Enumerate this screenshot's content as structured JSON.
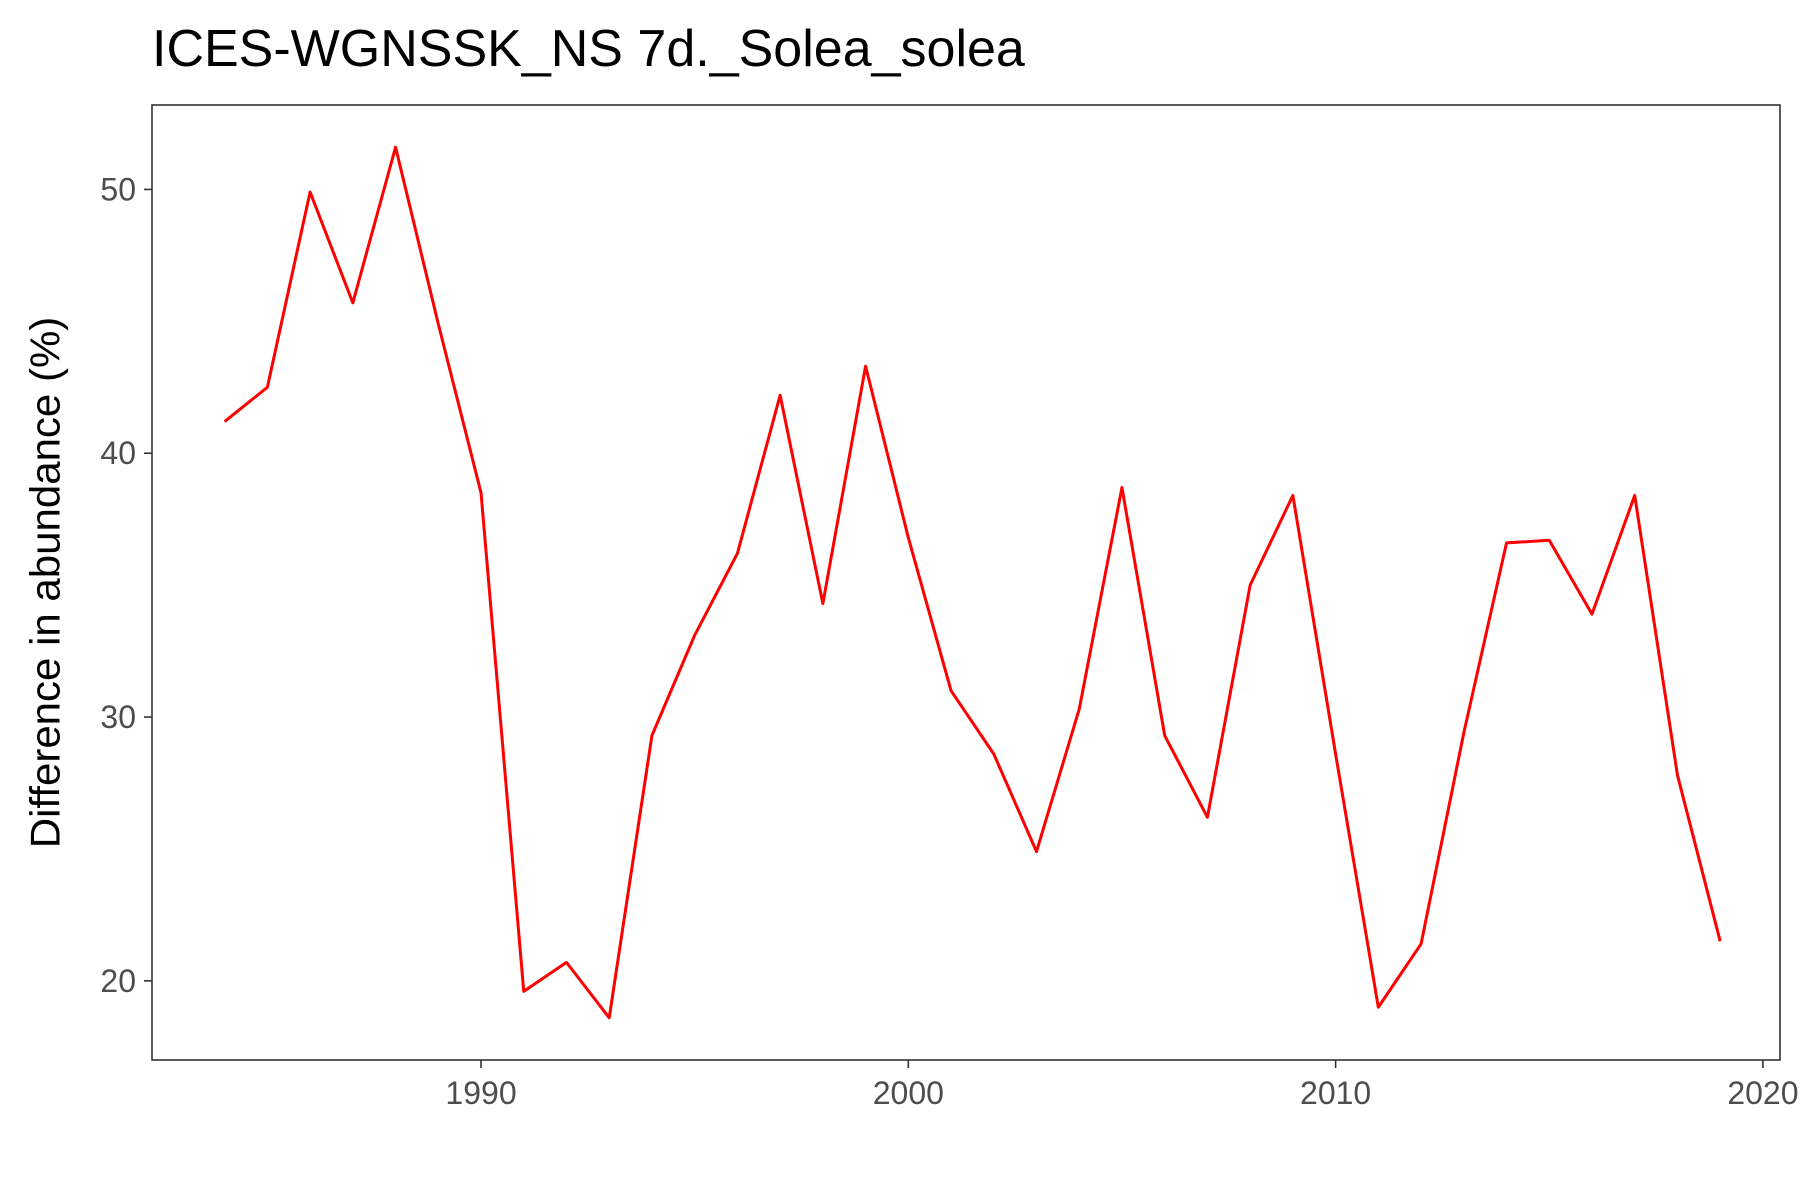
{
  "chart_data": {
    "type": "line",
    "title": "ICES-WGNSSK_NS 7d._Solea_solea",
    "xlabel": "",
    "ylabel": "Difference in abundance (%)",
    "xlim": [
      1982.3,
      2020.4
    ],
    "ylim": [
      17.0,
      53.2
    ],
    "x_ticks": [
      1990,
      2000,
      2010,
      2020
    ],
    "y_ticks": [
      20,
      30,
      40,
      50
    ],
    "grid": false,
    "legend": "none",
    "series": [
      {
        "color": "#ff0000",
        "x": [
          1984,
          1985,
          1986,
          1987,
          1988,
          1989,
          1990,
          1991,
          1992,
          1993,
          1994,
          1995,
          1996,
          1997,
          1998,
          1999,
          2000,
          2001,
          2002,
          2003,
          2004,
          2005,
          2006,
          2007,
          2008,
          2009,
          2010,
          2011,
          2012,
          2013,
          2014,
          2015,
          2016,
          2017,
          2018,
          2019
        ],
        "values": [
          41.2,
          42.5,
          49.9,
          45.7,
          51.6,
          44.9,
          38.5,
          19.6,
          20.7,
          18.6,
          29.3,
          33.1,
          36.2,
          42.2,
          34.3,
          43.3,
          36.8,
          31.0,
          28.6,
          24.9,
          30.3,
          38.7,
          29.3,
          26.2,
          35.0,
          38.4,
          28.6,
          19.0,
          21.4,
          29.4,
          36.6,
          36.7,
          33.9,
          38.4,
          27.8,
          21.5
        ]
      }
    ]
  }
}
